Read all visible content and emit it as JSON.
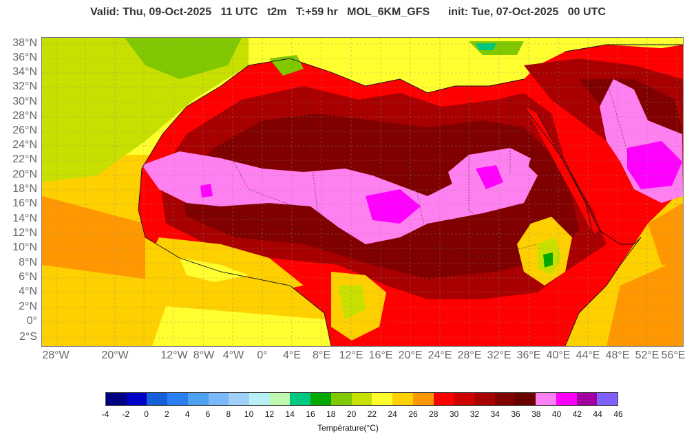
{
  "header": {
    "valid_label": "Valid: Thu, 09-Oct-2025   11 UTC",
    "variable": "t2m",
    "forecast_hour": "T:+59 hr",
    "model": "MOL_6KM_GFS",
    "init_label": "init: Tue, 07-Oct-2025   00 UTC"
  },
  "map": {
    "region": "North Africa and Arabian Peninsula",
    "lat_labels": [
      "38°N",
      "36°N",
      "34°N",
      "32°N",
      "30°N",
      "28°N",
      "26°N",
      "24°N",
      "22°N",
      "20°N",
      "18°N",
      "16°N",
      "14°N",
      "12°N",
      "10°N",
      "8°N",
      "6°N",
      "4°N",
      "2°N",
      "0°",
      "2°S"
    ],
    "lon_labels": [
      "28°W",
      "20°W",
      "12°W",
      "8°W",
      "4°W",
      "0°",
      "4°E",
      "8°E",
      "12°E",
      "16°E",
      "20°E",
      "24°E",
      "28°E",
      "32°E",
      "36°E",
      "40°E",
      "44°E",
      "48°E",
      "52°E",
      "56°E"
    ]
  },
  "legend": {
    "title": "Température(°C)",
    "ticks": [
      "-4",
      "-2",
      "0",
      "2",
      "4",
      "6",
      "8",
      "10",
      "12",
      "14",
      "16",
      "18",
      "20",
      "22",
      "24",
      "26",
      "28",
      "30",
      "32",
      "34",
      "36",
      "38",
      "40",
      "42",
      "44",
      "46"
    ],
    "colors": [
      "#000080",
      "#0000c8",
      "#1560d8",
      "#2a80f0",
      "#4ea0f0",
      "#7bb8f8",
      "#a0d0f8",
      "#b8f0f8",
      "#c0f8b0",
      "#00c880",
      "#00a800",
      "#80c800",
      "#c8e000",
      "#ffff30",
      "#ffd000",
      "#ff9800",
      "#ff0000",
      "#d00000",
      "#a80000",
      "#800000",
      "#680000",
      "#ff80f0",
      "#ff00ff",
      "#a000a0",
      "#8060ff"
    ]
  }
}
